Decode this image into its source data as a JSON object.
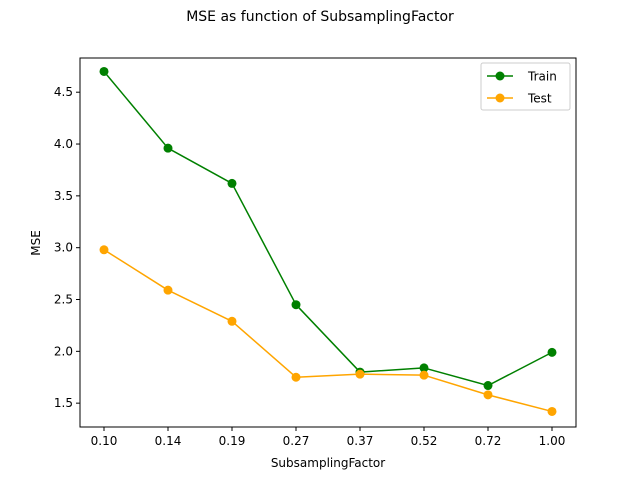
{
  "chart_data": {
    "type": "line",
    "title": "MSE as function of SubsamplingFactor",
    "xlabel": "SubsamplingFactor",
    "ylabel": "MSE",
    "categories": [
      "0.10",
      "0.14",
      "0.19",
      "0.27",
      "0.37",
      "0.52",
      "0.72",
      "1.00"
    ],
    "ylim": [
      1.27,
      4.83
    ],
    "yticks": [
      "1.5",
      "2.0",
      "2.5",
      "3.0",
      "3.5",
      "4.0",
      "4.5"
    ],
    "grid": false,
    "legend_position": "top-right",
    "series": [
      {
        "name": "Train",
        "color": "#008000",
        "values": [
          4.7,
          3.96,
          3.62,
          2.45,
          1.8,
          1.84,
          1.67,
          1.99
        ]
      },
      {
        "name": "Test",
        "color": "#FFA500",
        "values": [
          2.98,
          2.59,
          2.29,
          1.75,
          1.78,
          1.77,
          1.58,
          1.42
        ]
      }
    ]
  }
}
